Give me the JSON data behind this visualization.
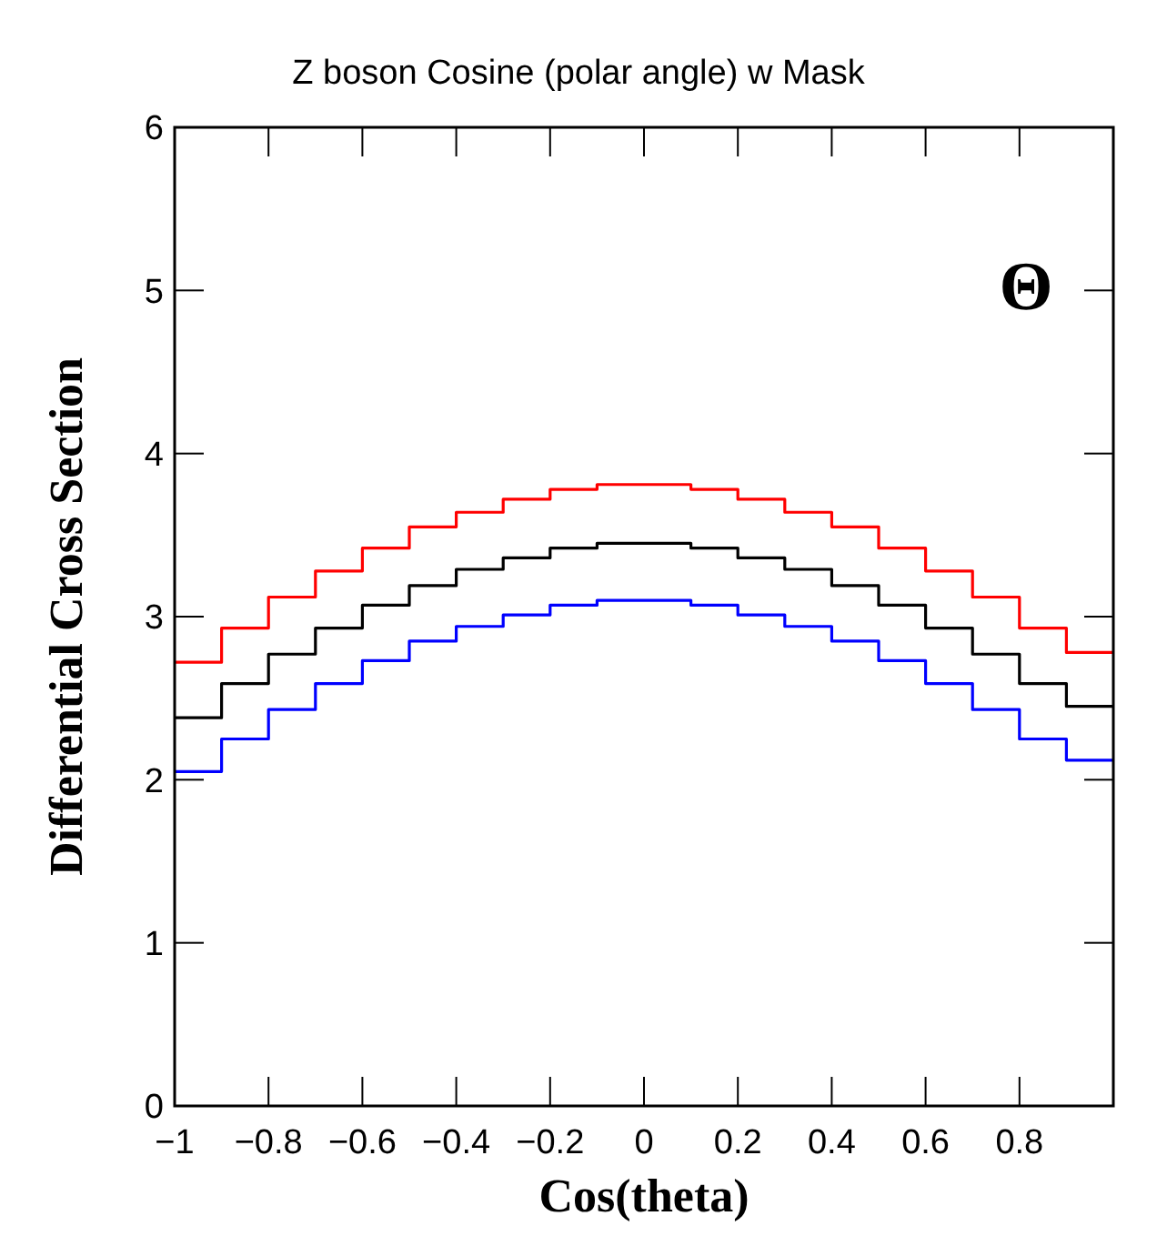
{
  "chart_data": {
    "type": "step",
    "title": "Z boson Cosine (polar angle) w Mask",
    "xlabel": "Cos(theta)",
    "ylabel": "Differential Cross Section",
    "annotations": [
      "Θ"
    ],
    "x": [
      -1,
      -0.9,
      -0.8,
      -0.7,
      -0.6,
      -0.5,
      -0.4,
      -0.3,
      -0.2,
      -0.1,
      0,
      0.1,
      0.2,
      0.3,
      0.4,
      0.5,
      0.6,
      0.7,
      0.8,
      0.9,
      1
    ],
    "series": [
      {
        "color": "#ff0000",
        "values": [
          2.72,
          2.93,
          3.12,
          3.28,
          3.42,
          3.55,
          3.64,
          3.72,
          3.78,
          3.81,
          3.81,
          3.78,
          3.72,
          3.64,
          3.55,
          3.42,
          3.28,
          3.12,
          2.93,
          2.78,
          2.78
        ]
      },
      {
        "color": "#000000",
        "values": [
          2.38,
          2.59,
          2.77,
          2.93,
          3.07,
          3.19,
          3.29,
          3.36,
          3.42,
          3.45,
          3.45,
          3.42,
          3.36,
          3.29,
          3.19,
          3.07,
          2.93,
          2.77,
          2.59,
          2.45,
          2.45
        ]
      },
      {
        "color": "#0000ff",
        "values": [
          2.05,
          2.25,
          2.43,
          2.59,
          2.73,
          2.85,
          2.94,
          3.01,
          3.07,
          3.1,
          3.1,
          3.07,
          3.01,
          2.94,
          2.85,
          2.73,
          2.59,
          2.43,
          2.25,
          2.12,
          2.12
        ]
      }
    ],
    "xlim": [
      -1,
      1
    ],
    "ylim": [
      0,
      6
    ],
    "xticks": [
      -1,
      -0.8,
      -0.6,
      -0.4,
      -0.2,
      0,
      0.2,
      0.4,
      0.6,
      0.8
    ],
    "yticks": [
      0,
      1,
      2,
      3,
      4,
      5,
      6
    ]
  }
}
